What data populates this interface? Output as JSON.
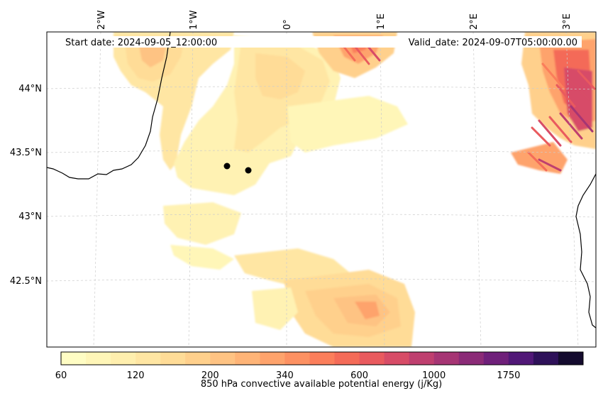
{
  "header": {
    "start_date": "Start date: 2024-09-05_12:00:00",
    "valid_date": "Valid_date: 2024-09-07T05:00:00.00"
  },
  "axes": {
    "lon_labels": [
      "2°W",
      "1°W",
      "0°",
      "1°E",
      "2°E",
      "3°E"
    ],
    "lat_labels": [
      "44°N",
      "43.5°N",
      "43°N",
      "42.5°N"
    ]
  },
  "colorbar": {
    "label": "850 hPa convective available potential energy (j/Kg)",
    "tick_labels": [
      "60",
      "120",
      "200",
      "340",
      "600",
      "1000",
      "1750"
    ],
    "colors": [
      "#fffdc4",
      "#fff6b8",
      "#ffefae",
      "#ffe6a3",
      "#ffdc97",
      "#ffd08c",
      "#fec383",
      "#feb477",
      "#fea36c",
      "#fd9162",
      "#fb7e5b",
      "#f46b58",
      "#e95a5e",
      "#d74c67",
      "#bf3f6f",
      "#a63574",
      "#8b2b77",
      "#6f207a",
      "#511877",
      "#2e1159",
      "#140b2e"
    ]
  },
  "markers": [
    {
      "name": "point-1",
      "color": "#000000"
    },
    {
      "name": "point-2",
      "color": "#000000"
    }
  ]
}
